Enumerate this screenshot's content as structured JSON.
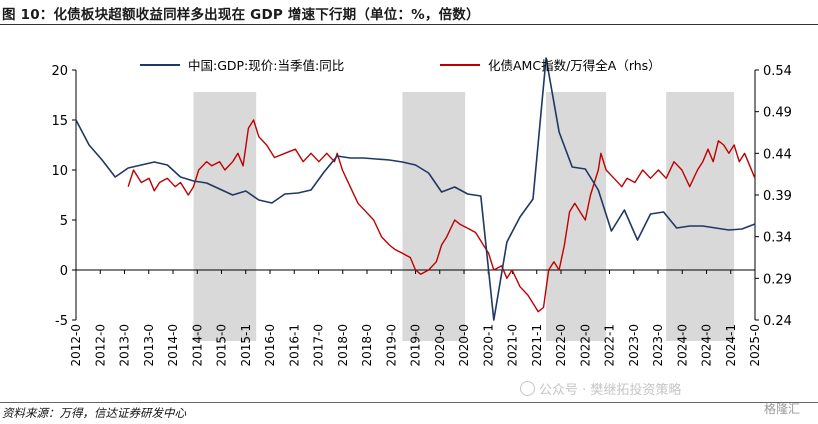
{
  "title": "图 10：化债板块超额收益同样多出现在 GDP 增速下行期（单位：%，倍数）",
  "source": "资料来源：万得，信达证券研发中心",
  "watermark": "公众号 · 樊继拓投资策略",
  "logo": "格隆汇",
  "colors": {
    "gdp": "#1f3864",
    "amc": "#c00000",
    "shade": "#d9d9d9",
    "axis": "#000000"
  },
  "chart_data": {
    "type": "line",
    "x_ticks": [
      "2012-0",
      "2012-0",
      "2013-0",
      "2013-0",
      "2014-0",
      "2014-0",
      "2015-0",
      "2015-1",
      "2016-0",
      "2016-1",
      "2017-0",
      "2018-0",
      "2018-0",
      "2019-0",
      "2019-0",
      "2020-0",
      "2020-0",
      "2020-1",
      "2021-0",
      "2021-1",
      "2022-0",
      "2022-0",
      "2022-1",
      "2023-0",
      "2023-0",
      "2024-0",
      "2024-0",
      "2024-1",
      "2025-0"
    ],
    "x_range": [
      2012.0,
      2025.0
    ],
    "y_left": {
      "min": -5,
      "max": 20,
      "ticks": [
        "-5",
        "0",
        "5",
        "10",
        "15",
        "20"
      ]
    },
    "y_right": {
      "min": 0.24,
      "max": 0.54,
      "ticks": [
        "0.24",
        "0.29",
        "0.34",
        "0.39",
        "0.44",
        "0.49",
        "0.54"
      ]
    },
    "shaded_periods": [
      [
        2014.25,
        2015.45
      ],
      [
        2018.25,
        2019.45
      ],
      [
        2021.0,
        2022.15
      ],
      [
        2023.3,
        2024.6
      ]
    ],
    "series": [
      {
        "name": "中国:GDP:现价:当季值:同比",
        "axis": "left",
        "points": [
          [
            2012.0,
            15.0
          ],
          [
            2012.25,
            12.5
          ],
          [
            2012.5,
            11.0
          ],
          [
            2012.75,
            9.3
          ],
          [
            2013.0,
            10.2
          ],
          [
            2013.25,
            10.5
          ],
          [
            2013.5,
            10.8
          ],
          [
            2013.75,
            10.5
          ],
          [
            2014.0,
            9.3
          ],
          [
            2014.25,
            8.9
          ],
          [
            2014.5,
            8.7
          ],
          [
            2014.75,
            8.1
          ],
          [
            2015.0,
            7.5
          ],
          [
            2015.25,
            7.9
          ],
          [
            2015.5,
            7.0
          ],
          [
            2015.75,
            6.7
          ],
          [
            2016.0,
            7.6
          ],
          [
            2016.25,
            7.7
          ],
          [
            2016.5,
            8.0
          ],
          [
            2016.75,
            9.8
          ],
          [
            2017.0,
            11.4
          ],
          [
            2017.25,
            11.2
          ],
          [
            2017.5,
            11.2
          ],
          [
            2017.75,
            11.1
          ],
          [
            2018.0,
            11.0
          ],
          [
            2018.25,
            10.8
          ],
          [
            2018.5,
            10.5
          ],
          [
            2018.75,
            9.7
          ],
          [
            2019.0,
            7.8
          ],
          [
            2019.25,
            8.3
          ],
          [
            2019.5,
            7.6
          ],
          [
            2019.75,
            7.4
          ],
          [
            2020.0,
            -5.0
          ],
          [
            2020.25,
            2.8
          ],
          [
            2020.5,
            5.3
          ],
          [
            2020.75,
            7.1
          ],
          [
            2021.0,
            21.2
          ],
          [
            2021.25,
            13.8
          ],
          [
            2021.5,
            10.3
          ],
          [
            2021.75,
            10.1
          ],
          [
            2022.0,
            8.0
          ],
          [
            2022.25,
            3.9
          ],
          [
            2022.5,
            6.0
          ],
          [
            2022.75,
            3.0
          ],
          [
            2023.0,
            5.6
          ],
          [
            2023.25,
            5.8
          ],
          [
            2023.5,
            4.2
          ],
          [
            2023.75,
            4.4
          ],
          [
            2024.0,
            4.4
          ],
          [
            2024.25,
            4.2
          ],
          [
            2024.5,
            4.0
          ],
          [
            2024.75,
            4.1
          ],
          [
            2025.0,
            4.6
          ]
        ]
      },
      {
        "name": "化债AMC指数/万得全A（rhs）",
        "axis": "right",
        "points": [
          [
            2013.0,
            0.4
          ],
          [
            2013.1,
            0.42
          ],
          [
            2013.25,
            0.405
          ],
          [
            2013.4,
            0.41
          ],
          [
            2013.5,
            0.395
          ],
          [
            2013.6,
            0.405
          ],
          [
            2013.75,
            0.41
          ],
          [
            2013.9,
            0.4
          ],
          [
            2014.0,
            0.405
          ],
          [
            2014.15,
            0.39
          ],
          [
            2014.25,
            0.4
          ],
          [
            2014.35,
            0.42
          ],
          [
            2014.5,
            0.43
          ],
          [
            2014.6,
            0.425
          ],
          [
            2014.75,
            0.43
          ],
          [
            2014.85,
            0.42
          ],
          [
            2015.0,
            0.43
          ],
          [
            2015.1,
            0.44
          ],
          [
            2015.2,
            0.425
          ],
          [
            2015.3,
            0.47
          ],
          [
            2015.4,
            0.48
          ],
          [
            2015.5,
            0.46
          ],
          [
            2015.65,
            0.45
          ],
          [
            2015.8,
            0.435
          ],
          [
            2016.0,
            0.44
          ],
          [
            2016.2,
            0.445
          ],
          [
            2016.35,
            0.43
          ],
          [
            2016.5,
            0.44
          ],
          [
            2016.65,
            0.43
          ],
          [
            2016.8,
            0.44
          ],
          [
            2016.95,
            0.43
          ],
          [
            2017.0,
            0.44
          ],
          [
            2017.1,
            0.42
          ],
          [
            2017.25,
            0.4
          ],
          [
            2017.4,
            0.38
          ],
          [
            2017.55,
            0.37
          ],
          [
            2017.7,
            0.36
          ],
          [
            2017.85,
            0.34
          ],
          [
            2018.0,
            0.33
          ],
          [
            2018.1,
            0.325
          ],
          [
            2018.25,
            0.32
          ],
          [
            2018.4,
            0.315
          ],
          [
            2018.5,
            0.3
          ],
          [
            2018.6,
            0.295
          ],
          [
            2018.75,
            0.3
          ],
          [
            2018.9,
            0.31
          ],
          [
            2019.0,
            0.33
          ],
          [
            2019.1,
            0.34
          ],
          [
            2019.25,
            0.36
          ],
          [
            2019.35,
            0.355
          ],
          [
            2019.5,
            0.35
          ],
          [
            2019.65,
            0.345
          ],
          [
            2019.8,
            0.33
          ],
          [
            2019.9,
            0.32
          ],
          [
            2020.0,
            0.3
          ],
          [
            2020.15,
            0.305
          ],
          [
            2020.25,
            0.29
          ],
          [
            2020.35,
            0.3
          ],
          [
            2020.5,
            0.28
          ],
          [
            2020.65,
            0.27
          ],
          [
            2020.75,
            0.26
          ],
          [
            2020.85,
            0.25
          ],
          [
            2020.95,
            0.255
          ],
          [
            2021.05,
            0.3
          ],
          [
            2021.15,
            0.31
          ],
          [
            2021.25,
            0.3
          ],
          [
            2021.35,
            0.33
          ],
          [
            2021.45,
            0.37
          ],
          [
            2021.55,
            0.38
          ],
          [
            2021.65,
            0.37
          ],
          [
            2021.75,
            0.36
          ],
          [
            2021.85,
            0.39
          ],
          [
            2022.0,
            0.42
          ],
          [
            2022.05,
            0.44
          ],
          [
            2022.15,
            0.42
          ],
          [
            2022.3,
            0.41
          ],
          [
            2022.45,
            0.4
          ],
          [
            2022.55,
            0.41
          ],
          [
            2022.7,
            0.405
          ],
          [
            2022.85,
            0.42
          ],
          [
            2023.0,
            0.41
          ],
          [
            2023.15,
            0.42
          ],
          [
            2023.3,
            0.41
          ],
          [
            2023.45,
            0.43
          ],
          [
            2023.6,
            0.42
          ],
          [
            2023.75,
            0.4
          ],
          [
            2023.9,
            0.42
          ],
          [
            2024.0,
            0.43
          ],
          [
            2024.1,
            0.445
          ],
          [
            2024.2,
            0.43
          ],
          [
            2024.3,
            0.455
          ],
          [
            2024.4,
            0.45
          ],
          [
            2024.5,
            0.44
          ],
          [
            2024.6,
            0.45
          ],
          [
            2024.7,
            0.43
          ],
          [
            2024.8,
            0.44
          ],
          [
            2024.9,
            0.425
          ],
          [
            2025.0,
            0.41
          ]
        ]
      }
    ]
  }
}
